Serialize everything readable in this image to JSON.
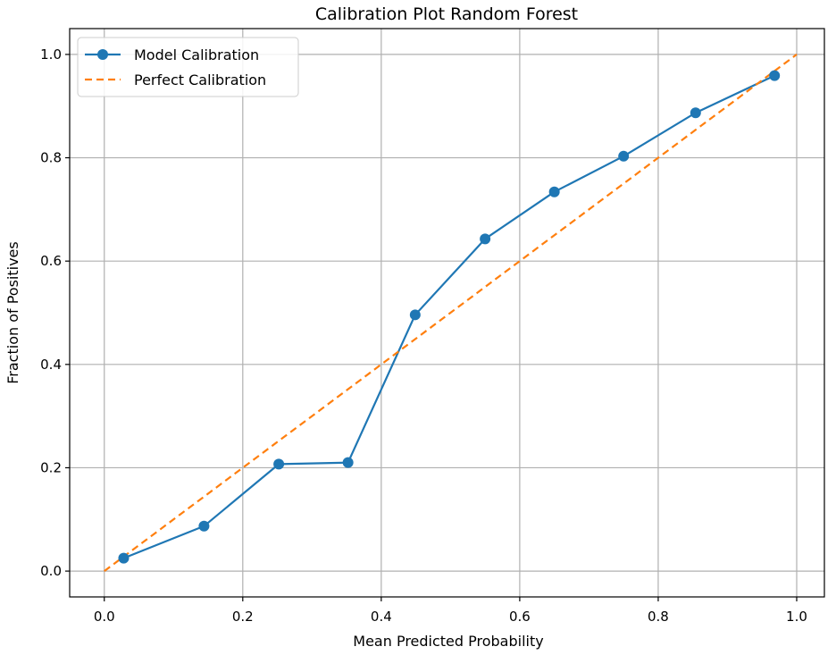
{
  "chart_data": {
    "type": "line",
    "title": "Calibration Plot Random Forest",
    "xlabel": "Mean Predicted Probability",
    "ylabel": "Fraction of Positives",
    "xlim": [
      -0.05,
      1.04
    ],
    "ylim": [
      -0.05,
      1.05
    ],
    "xticks": [
      0.0,
      0.2,
      0.4,
      0.6,
      0.8,
      1.0
    ],
    "xtick_labels": [
      "0.0",
      "0.2",
      "0.4",
      "0.6",
      "0.8",
      "1.0"
    ],
    "yticks": [
      0.0,
      0.2,
      0.4,
      0.6,
      0.8,
      1.0
    ],
    "ytick_labels": [
      "0.0",
      "0.2",
      "0.4",
      "0.6",
      "0.8",
      "1.0"
    ],
    "grid": true,
    "legend_position": "top-left",
    "series": [
      {
        "name": "Model Calibration",
        "color": "#1f77b4",
        "style": "solid-with-markers",
        "x": [
          0.028,
          0.144,
          0.252,
          0.352,
          0.449,
          0.55,
          0.65,
          0.75,
          0.854,
          0.968
        ],
        "y": [
          0.025,
          0.087,
          0.207,
          0.21,
          0.496,
          0.643,
          0.734,
          0.803,
          0.887,
          0.959
        ]
      },
      {
        "name": "Perfect Calibration",
        "color": "#ff7f0e",
        "style": "dashed",
        "x": [
          0.0,
          1.0
        ],
        "y": [
          0.0,
          1.0
        ]
      }
    ]
  }
}
